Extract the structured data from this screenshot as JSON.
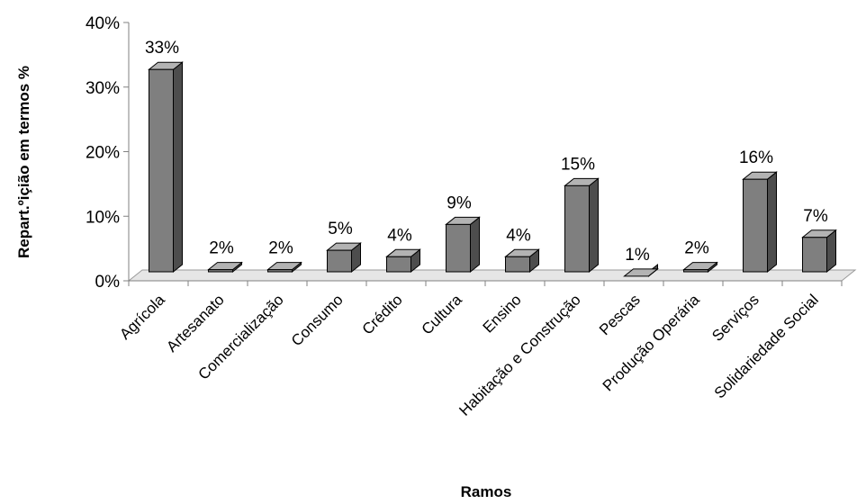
{
  "chart_data": {
    "type": "bar",
    "categories": [
      "Agrícola",
      "Artesanato",
      "Comercialização",
      "Consumo",
      "Crédito",
      "Cultura",
      "Ensino",
      "Habitação e Construção",
      "Pescas",
      "Produção Operária",
      "Serviços",
      "Solidariedade Social"
    ],
    "values": [
      33,
      2,
      2,
      5,
      4,
      9,
      4,
      15,
      1,
      2,
      16,
      7
    ],
    "value_format": "percent",
    "data_labels": [
      "33%",
      "2%",
      "2%",
      "5%",
      "4%",
      "9%",
      "4%",
      "15%",
      "1%",
      "2%",
      "16%",
      "7%"
    ],
    "ylim": [
      0,
      40
    ],
    "yticks": [
      "0%",
      "10%",
      "20%",
      "30%",
      "40%"
    ],
    "xlabel": "Ramos",
    "ylabel": "Repart.ºiçião em termos %",
    "grid": false,
    "legend": "none",
    "style": "3d-column",
    "colors": {
      "front": "#7f7f7f",
      "side": "#4d4d4d",
      "top": "#b3b3b3",
      "floor": "#e6e6e6"
    }
  }
}
